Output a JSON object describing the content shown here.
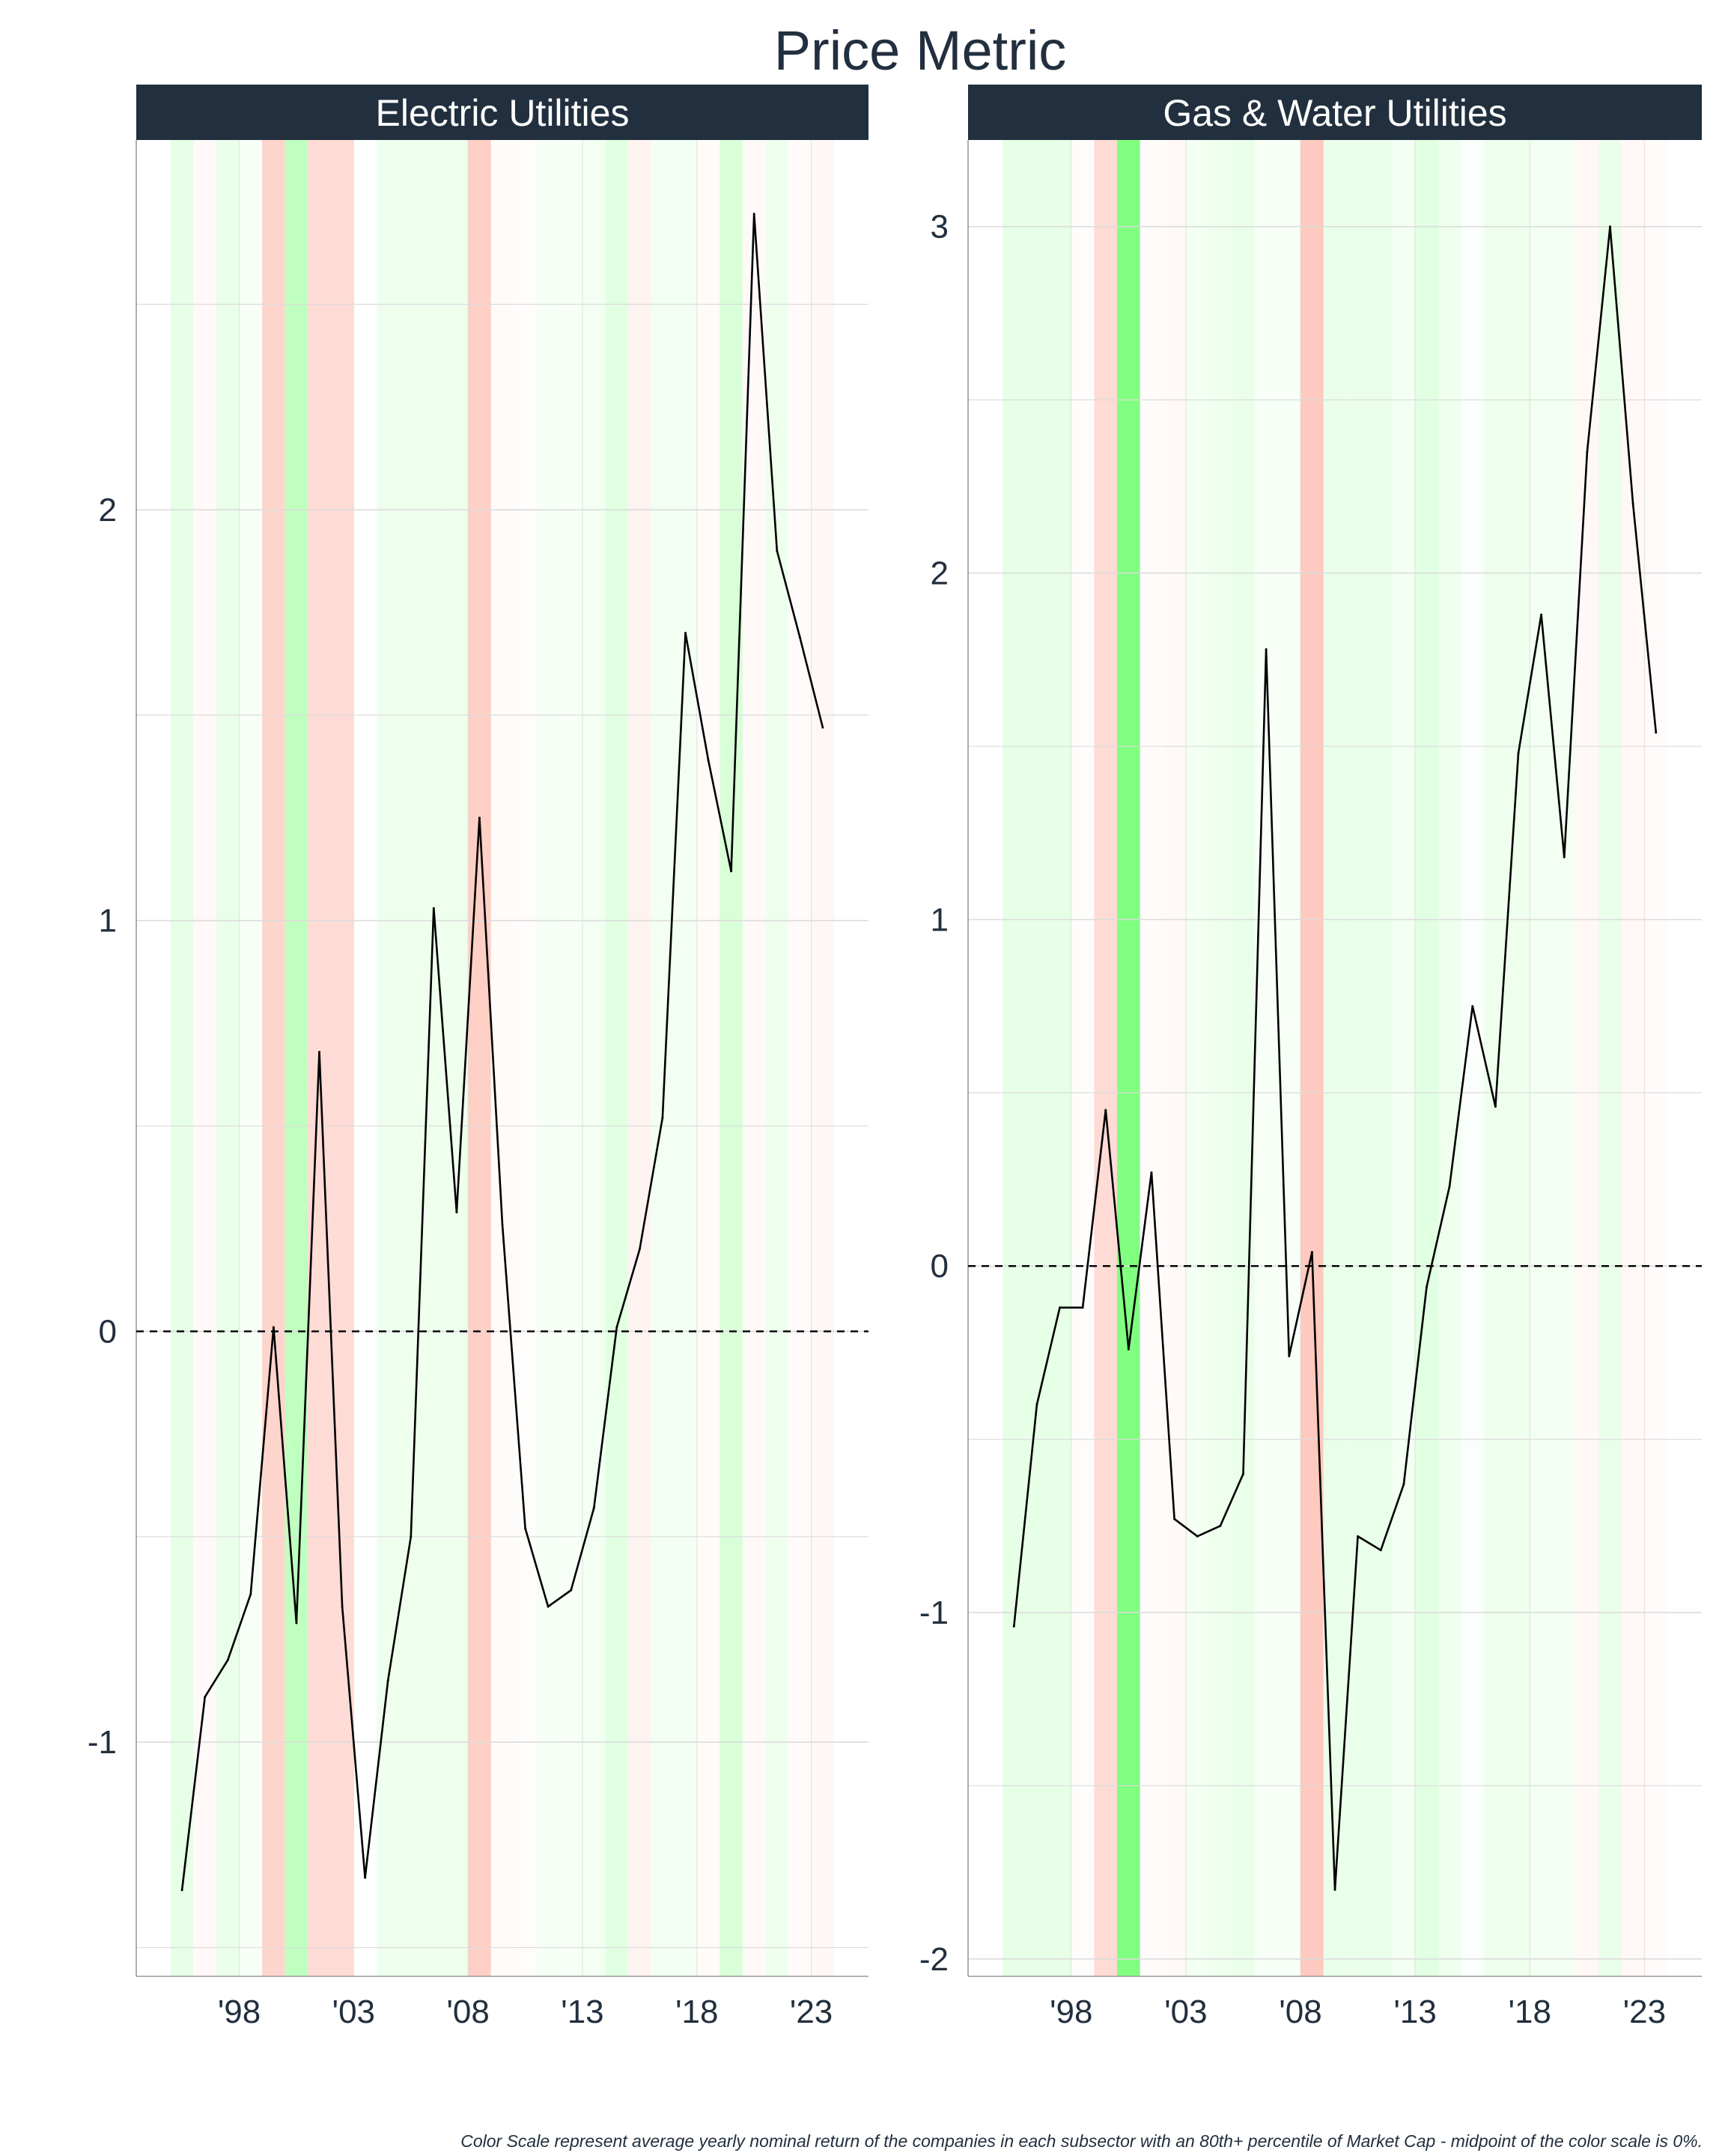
{
  "title": "Price Metric",
  "caption": "Color Scale represent average yearly nominal return of the companies in each subsector with an 80th+ percentile of Market Cap - midpoint of the color scale is 0%.",
  "colors": {
    "strip_bg": "#222f3e",
    "text": "#222f3e",
    "grid": "#dcdcdc",
    "line": "#000000",
    "negative_return": "#fa6e50",
    "positive_return": "#00ff00"
  },
  "chart_data": [
    {
      "type": "line",
      "panel_title": "Electric Utilities",
      "x_tick_labels": [
        "'98",
        "'03",
        "'08",
        "'13",
        "'18",
        "'23"
      ],
      "x_tick_values": [
        1998,
        2003,
        2008,
        2013,
        2018,
        2023
      ],
      "y_tick_labels": [
        "-1",
        "0",
        "1",
        "2"
      ],
      "y_tick_values": [
        -1,
        0,
        1,
        2
      ],
      "xlim": [
        1993.5,
        2025.5
      ],
      "ylim": [
        -1.57,
        2.9
      ],
      "reference_line": 0,
      "x": [
        1995,
        1996,
        1997,
        1998,
        1999,
        2000,
        2001,
        2002,
        2003,
        2004,
        2005,
        2006,
        2007,
        2008,
        2009,
        2010,
        2011,
        2012,
        2013,
        2014,
        2015,
        2016,
        2017,
        2018,
        2019,
        2020,
        2021,
        2022,
        2023
      ],
      "values": [
        -1.36,
        -0.89,
        -0.8,
        -0.64,
        0.01,
        -0.71,
        0.68,
        -0.67,
        -1.33,
        -0.85,
        -0.5,
        1.03,
        0.29,
        1.25,
        0.26,
        -0.48,
        -0.67,
        -0.63,
        -0.43,
        0.01,
        0.2,
        0.52,
        1.7,
        1.39,
        1.12,
        2.72,
        1.9,
        1.69,
        1.47
      ],
      "background_returns": [
        0.12,
        -0.05,
        0.1,
        0.04,
        -0.35,
        0.3,
        -0.3,
        -0.3,
        0.0,
        0.08,
        0.08,
        0.08,
        0.08,
        -0.4,
        -0.04,
        -0.02,
        0.05,
        0.04,
        0.06,
        0.14,
        -0.1,
        0.06,
        0.06,
        -0.04,
        0.18,
        -0.05,
        0.08,
        -0.03,
        -0.07
      ]
    },
    {
      "type": "line",
      "panel_title": "Gas & Water Utilities",
      "x_tick_labels": [
        "'98",
        "'03",
        "'08",
        "'13",
        "'18",
        "'23"
      ],
      "x_tick_values": [
        1998,
        2003,
        2008,
        2013,
        2018,
        2023
      ],
      "y_tick_labels": [
        "-2",
        "-1",
        "0",
        "1",
        "2",
        "3"
      ],
      "y_tick_values": [
        -2,
        -1,
        0,
        1,
        2,
        3
      ],
      "xlim": [
        1993.5,
        2025.5
      ],
      "ylim": [
        -2.05,
        3.25
      ],
      "reference_line": 0,
      "x": [
        1995,
        1996,
        1997,
        1998,
        1999,
        2000,
        2001,
        2002,
        2003,
        2004,
        2005,
        2006,
        2007,
        2008,
        2009,
        2010,
        2011,
        2012,
        2013,
        2014,
        2015,
        2016,
        2017,
        2018,
        2019,
        2020,
        2021,
        2022,
        2023
      ],
      "values": [
        -1.04,
        -0.4,
        -0.12,
        -0.12,
        0.45,
        -0.24,
        0.27,
        -0.73,
        -0.78,
        -0.75,
        -0.6,
        1.78,
        -0.26,
        0.04,
        -1.8,
        -0.78,
        -0.82,
        -0.63,
        -0.06,
        0.23,
        0.75,
        0.46,
        1.48,
        1.88,
        1.18,
        2.35,
        3.0,
        2.2,
        1.54
      ],
      "background_returns": [
        0.12,
        0.12,
        0.12,
        -0.02,
        -0.3,
        0.6,
        -0.03,
        -0.05,
        0.06,
        0.08,
        0.1,
        0.04,
        0.04,
        -0.45,
        0.1,
        0.1,
        0.1,
        0.06,
        0.14,
        0.08,
        0.02,
        0.08,
        0.08,
        0.06,
        0.06,
        -0.06,
        0.1,
        -0.06,
        -0.03
      ]
    }
  ]
}
